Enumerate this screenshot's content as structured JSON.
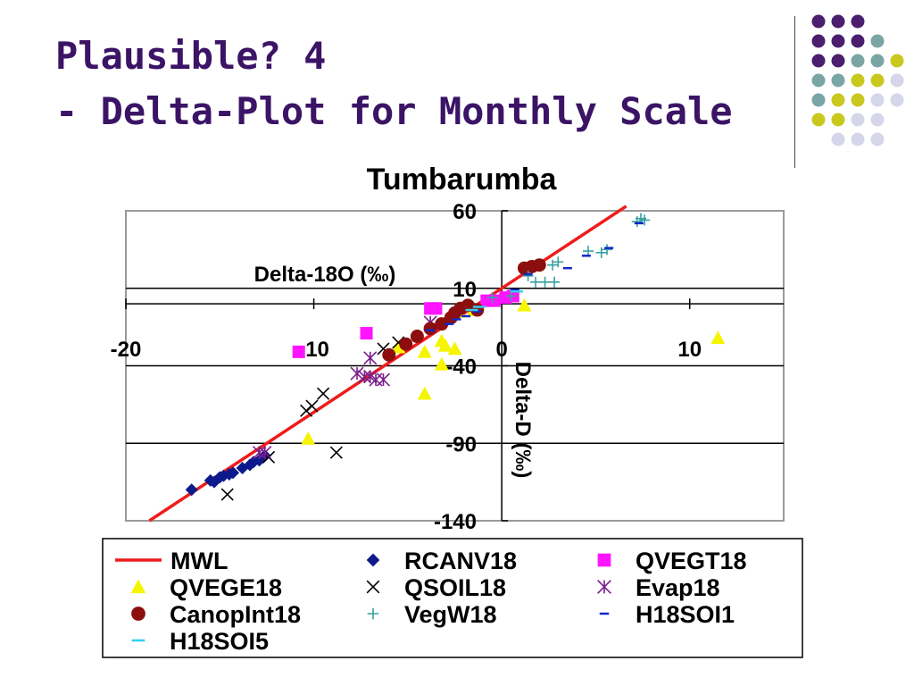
{
  "slide": {
    "title_line1": "Plausible? 4",
    "title_line2": "- Delta-Plot for Monthly Scale",
    "colors": {
      "title": "#3b1466",
      "dot_purple": "#4b1e6e",
      "dot_teal": "#7aa5a5",
      "dot_olive": "#c8c81e",
      "dot_lavender": "#d6d6ea"
    }
  },
  "chart_data": {
    "type": "scatter",
    "title": "Tumbarumba",
    "xlabel": "Delta-18O (‰)",
    "ylabel": "Delta-D (‰)",
    "xlim": [
      -20,
      15
    ],
    "ylim": [
      -140,
      60
    ],
    "x_ticks": [
      -20,
      -10,
      0,
      10
    ],
    "y_ticks": [
      60,
      10,
      -40,
      -90,
      -140
    ],
    "grid": "horizontal",
    "legend": "bottom",
    "series": [
      {
        "name": "MWL",
        "marker": "line",
        "color": "#ee1c1c",
        "line": {
          "slope": 8,
          "intercept": 10
        }
      },
      {
        "name": "RCANV18",
        "marker": "diamond",
        "color": "#0d1a8c",
        "points": [
          [
            -16.5,
            -120
          ],
          [
            -15.5,
            -114
          ],
          [
            -15.3,
            -115
          ],
          [
            -15,
            -112
          ],
          [
            -14.8,
            -111
          ],
          [
            -14.5,
            -110
          ],
          [
            -14.3,
            -109
          ],
          [
            -13.8,
            -106
          ],
          [
            -13.4,
            -104
          ],
          [
            -13.2,
            -102
          ],
          [
            -12.9,
            -101
          ],
          [
            -12.7,
            -99
          ],
          [
            -12.6,
            -98
          ]
        ]
      },
      {
        "name": "QVEGT18",
        "marker": "square",
        "color": "#ff14ff",
        "points": [
          [
            -10.8,
            -31
          ],
          [
            -7.2,
            -19
          ],
          [
            -3.8,
            -3
          ],
          [
            -3.5,
            -3
          ],
          [
            -0.8,
            2
          ],
          [
            -0.4,
            2
          ],
          [
            0.2,
            4
          ],
          [
            0.6,
            5
          ]
        ]
      },
      {
        "name": "QVEGE18",
        "marker": "triangle",
        "color": "#f5f500",
        "points": [
          [
            -10.3,
            -87
          ],
          [
            -5.5,
            -28
          ],
          [
            -4.1,
            -31
          ],
          [
            -4.1,
            -58
          ],
          [
            -3.2,
            -24
          ],
          [
            -3.0,
            -27
          ],
          [
            -2.5,
            -29
          ],
          [
            -2.3,
            -5
          ],
          [
            -1.5,
            -4
          ],
          [
            1.2,
            -1
          ],
          [
            11.5,
            -22
          ],
          [
            -3.2,
            -39
          ]
        ]
      },
      {
        "name": "QSOIL18",
        "marker": "x",
        "color": "#000000",
        "points": [
          [
            -14.6,
            -123
          ],
          [
            -12.4,
            -99
          ],
          [
            -10.1,
            -66
          ],
          [
            -10.4,
            -69
          ],
          [
            -9.5,
            -58
          ],
          [
            -8.8,
            -96
          ],
          [
            -6.3,
            -29
          ],
          [
            -5.5,
            -25
          ]
        ]
      },
      {
        "name": "Evap18",
        "marker": "asterisk",
        "color": "#7a1e8c",
        "points": [
          [
            -12.9,
            -96
          ],
          [
            -12.6,
            -96
          ],
          [
            -7.7,
            -45
          ],
          [
            -7.3,
            -47
          ],
          [
            -7.0,
            -47
          ],
          [
            -6.7,
            -49
          ],
          [
            -6.3,
            -49
          ],
          [
            -7.0,
            -35
          ],
          [
            -3.8,
            -12
          ]
        ]
      },
      {
        "name": "CanopInt18",
        "marker": "circle",
        "color": "#8c0e0e",
        "points": [
          [
            -6.0,
            -33
          ],
          [
            -5.1,
            -26
          ],
          [
            -4.5,
            -21
          ],
          [
            -3.8,
            -16
          ],
          [
            -3.2,
            -13
          ],
          [
            -2.7,
            -9
          ],
          [
            -2.2,
            -3
          ],
          [
            -1.8,
            -1
          ],
          [
            -1.3,
            -4
          ],
          [
            -2.5,
            -6
          ],
          [
            1.2,
            23
          ],
          [
            1.6,
            24
          ],
          [
            2.0,
            25
          ]
        ]
      },
      {
        "name": "VegW18",
        "marker": "plus",
        "color": "#3aa0a0",
        "points": [
          [
            -0.5,
            4
          ],
          [
            0.5,
            5
          ],
          [
            1.4,
            18
          ],
          [
            1.8,
            14
          ],
          [
            2.3,
            14
          ],
          [
            2.8,
            14
          ],
          [
            3.0,
            27
          ],
          [
            2.7,
            25
          ],
          [
            4.6,
            34
          ],
          [
            5.3,
            33
          ],
          [
            5.6,
            35
          ],
          [
            7.2,
            53
          ],
          [
            7.4,
            55
          ],
          [
            7.6,
            54
          ]
        ]
      },
      {
        "name": "H18SOI1",
        "marker": "dash",
        "color": "#1028c8",
        "points": [
          [
            -3.8,
            -17
          ],
          [
            -2.8,
            -13
          ],
          [
            -2.4,
            -10
          ],
          [
            -1.9,
            -8
          ],
          [
            -1.3,
            -5
          ],
          [
            0.7,
            9
          ],
          [
            1.4,
            19
          ],
          [
            3.5,
            23
          ],
          [
            4.5,
            31
          ],
          [
            5.7,
            36
          ],
          [
            7.3,
            52
          ]
        ]
      },
      {
        "name": "H18SOI5",
        "marker": "hline",
        "color": "#30d0f0",
        "points": [
          [
            -1.6,
            -4
          ],
          [
            -1.2,
            -2
          ],
          [
            0.8,
            8
          ]
        ]
      }
    ]
  }
}
